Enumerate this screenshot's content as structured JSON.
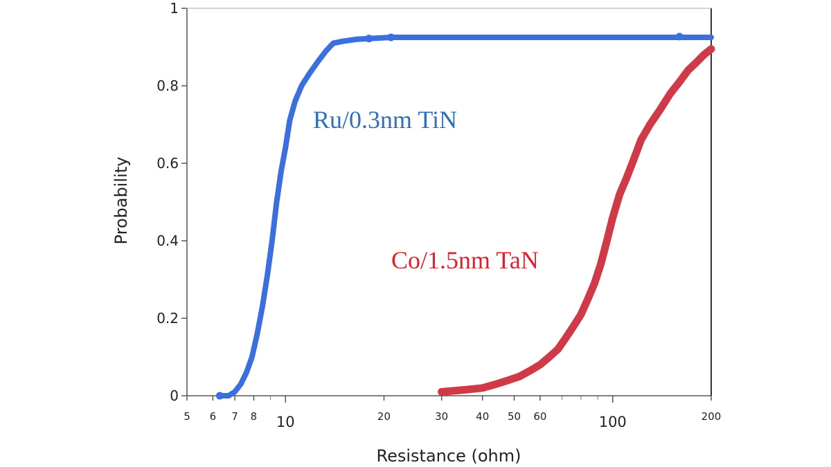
{
  "chart_data": {
    "type": "line",
    "title": "",
    "xlabel": "Resistance (ohm)",
    "ylabel": "Probability",
    "x_scale": "log",
    "xlim": [
      5,
      200
    ],
    "ylim": [
      0,
      1
    ],
    "x_ticks_minor": [
      "5",
      "6",
      "7",
      "8",
      "20",
      "30",
      "40",
      "50",
      "60",
      "200"
    ],
    "x_ticks_major": [
      "10",
      "100"
    ],
    "y_ticks": [
      "0",
      "0.2",
      "0.4",
      "0.6",
      "0.8",
      "1"
    ],
    "series": [
      {
        "name": "Ru/0.3nm TiN",
        "color": "#3b6fe0",
        "label_color": "#2f6fb8",
        "x": [
          6.3,
          6.7,
          7.0,
          7.3,
          7.6,
          7.9,
          8.2,
          8.5,
          8.8,
          9.1,
          9.4,
          9.7,
          10.0,
          10.3,
          10.7,
          11.2,
          11.8,
          12.5,
          13.3,
          14.0,
          15.0,
          16.5,
          18.0,
          21.0,
          160.0,
          200.0
        ],
        "y": [
          0.0,
          0.0,
          0.01,
          0.03,
          0.06,
          0.1,
          0.16,
          0.23,
          0.31,
          0.4,
          0.5,
          0.58,
          0.64,
          0.71,
          0.76,
          0.8,
          0.83,
          0.86,
          0.89,
          0.91,
          0.915,
          0.92,
          0.922,
          0.925,
          0.925,
          0.925
        ],
        "markers": [
          {
            "x": 6.3,
            "y": 0.0
          },
          {
            "x": 18.0,
            "y": 0.922
          },
          {
            "x": 21.0,
            "y": 0.925
          },
          {
            "x": 160.0,
            "y": 0.927
          }
        ]
      },
      {
        "name": "Co/1.5nm TaN",
        "color": "#d03a48",
        "label_color": "#e0202c",
        "x": [
          30.0,
          35.0,
          40.0,
          44.0,
          48.0,
          52.0,
          56.0,
          60.0,
          64.0,
          68.0,
          72.0,
          76.0,
          80.0,
          84.0,
          88.0,
          92.0,
          96.0,
          100.0,
          105.0,
          110.0,
          116.0,
          122.0,
          130.0,
          140.0,
          150.0,
          160.0,
          170.0,
          180.0,
          190.0,
          200.0
        ],
        "y": [
          0.01,
          0.015,
          0.02,
          0.03,
          0.04,
          0.05,
          0.065,
          0.08,
          0.1,
          0.12,
          0.15,
          0.18,
          0.21,
          0.25,
          0.29,
          0.34,
          0.4,
          0.46,
          0.52,
          0.56,
          0.61,
          0.66,
          0.7,
          0.74,
          0.78,
          0.81,
          0.84,
          0.86,
          0.88,
          0.895
        ],
        "markers": [
          {
            "x": 30.0,
            "y": 0.01
          },
          {
            "x": 35.0,
            "y": 0.015
          }
        ]
      }
    ],
    "grid": false,
    "legend": "inline labels"
  }
}
